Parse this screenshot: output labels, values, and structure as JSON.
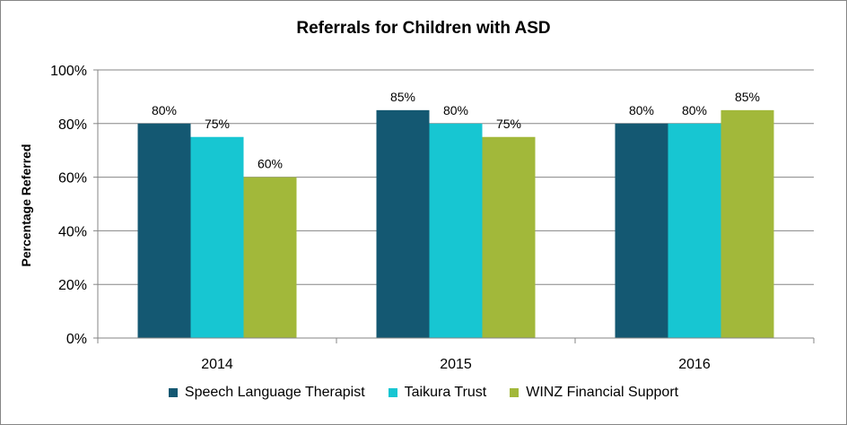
{
  "chart_data": {
    "type": "bar",
    "title": "Referrals for Children with ASD",
    "ylabel": "Percentage Referred",
    "xlabel": "",
    "categories": [
      "2014",
      "2015",
      "2016"
    ],
    "series": [
      {
        "name": "Speech Language Therapist",
        "values": [
          80,
          85,
          80
        ],
        "color": "#145872"
      },
      {
        "name": "Taikura Trust",
        "values": [
          75,
          80,
          80
        ],
        "color": "#17C6D2"
      },
      {
        "name": "WINZ Financial Support",
        "values": [
          60,
          75,
          85
        ],
        "color": "#A2B83A"
      }
    ],
    "data_labels": [
      [
        "80%",
        "85%",
        "80%"
      ],
      [
        "75%",
        "80%",
        "80%"
      ],
      [
        "60%",
        "75%",
        "85%"
      ]
    ],
    "ylim": [
      0,
      100
    ],
    "yticks": [
      0,
      20,
      40,
      60,
      80,
      100
    ],
    "ytick_labels": [
      "0%",
      "20%",
      "40%",
      "60%",
      "80%",
      "100%"
    ],
    "grid": true,
    "legend_position": "bottom"
  }
}
